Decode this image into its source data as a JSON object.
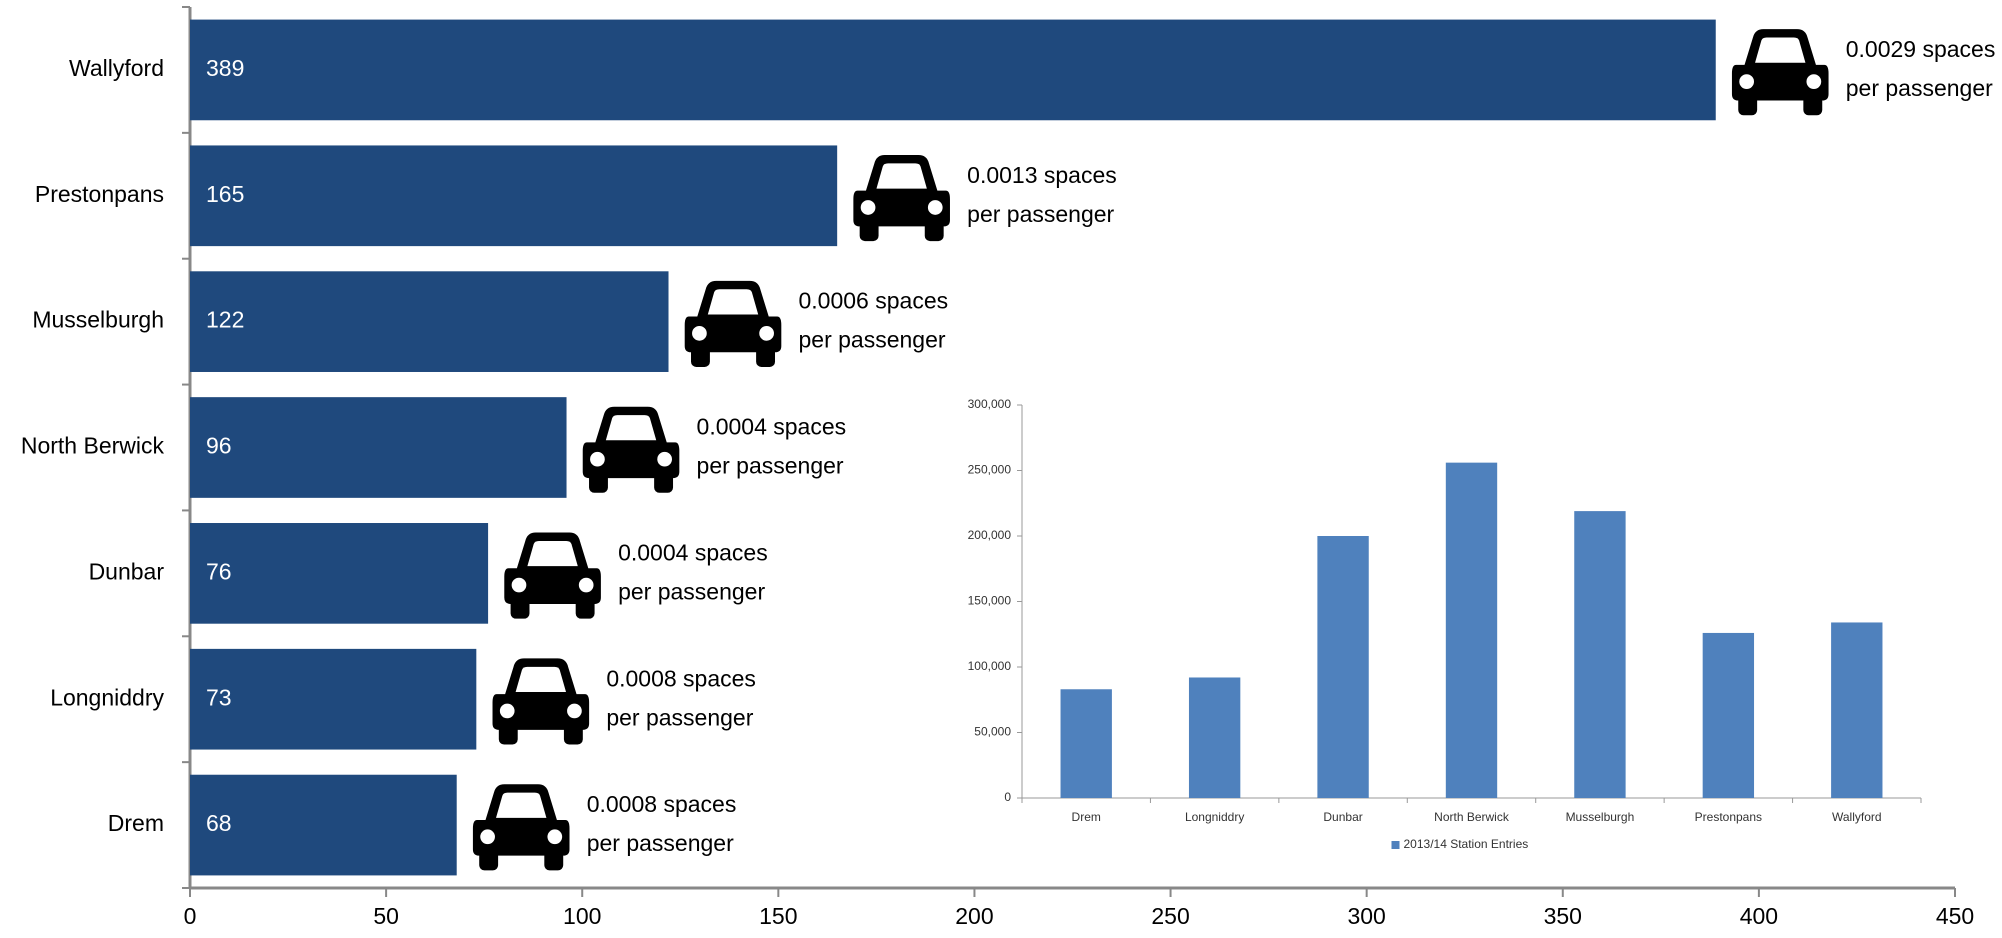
{
  "chart_data": [
    {
      "type": "hbar",
      "categories": [
        "Wallyford",
        "Prestonpans",
        "Musselburgh",
        "North Berwick",
        "Dunbar",
        "Longniddry",
        "Drem"
      ],
      "values": [
        389,
        165,
        122,
        96,
        76,
        73,
        68
      ],
      "color": "#1f497d",
      "annotations": [
        [
          "0.0029 spaces",
          "per passenger"
        ],
        [
          "0.0013 spaces",
          "per passenger"
        ],
        [
          "0.0006 spaces",
          "per passenger"
        ],
        [
          "0.0004 spaces",
          "per passenger"
        ],
        [
          "0.0004 spaces",
          "per passenger"
        ],
        [
          "0.0008 spaces",
          "per passenger"
        ],
        [
          "0.0008 spaces",
          "per passenger"
        ]
      ],
      "xlim": [
        0,
        450
      ],
      "xticks": [
        0,
        50,
        100,
        150,
        200,
        250,
        300,
        350,
        400,
        450
      ]
    },
    {
      "type": "bar",
      "categories": [
        "Drem",
        "Longniddry",
        "Dunbar",
        "North Berwick",
        "Musselburgh",
        "Prestonpans",
        "Wallyford"
      ],
      "series": [
        {
          "name": "2013/14 Station Entries",
          "color": "#4f81bd",
          "values": [
            83000,
            92000,
            200000,
            256000,
            219000,
            126000,
            134000
          ]
        }
      ],
      "ylim": [
        0,
        300000
      ],
      "yticks": [
        0,
        {
          "value": 50000,
          "label": "50,000"
        },
        {
          "value": 100000,
          "label": "100,000"
        },
        {
          "value": 150000,
          "label": "150,000"
        },
        {
          "value": 200000,
          "label": "200,000"
        },
        {
          "value": 250000,
          "label": "250,000"
        },
        {
          "value": 300000,
          "label": "300,000"
        }
      ],
      "legend": "bottom"
    }
  ]
}
